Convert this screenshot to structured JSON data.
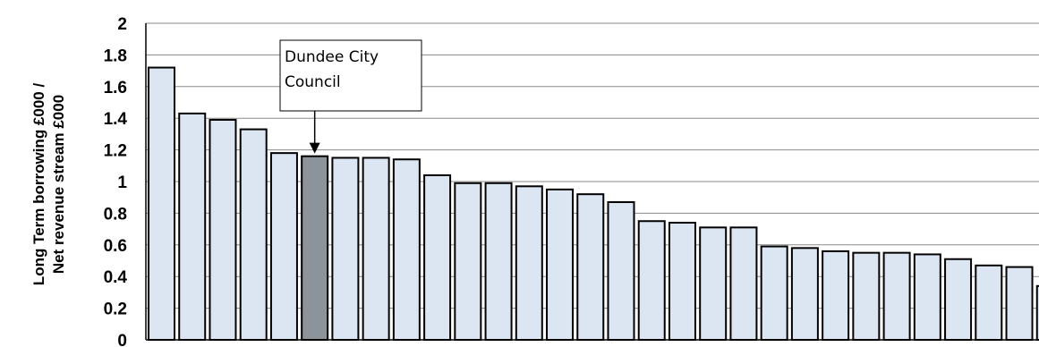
{
  "chart_data": {
    "type": "bar",
    "title": "",
    "xlabel": "",
    "ylabel_lines": [
      "Long Term borrowing £000 /",
      "Net revenue stream £000"
    ],
    "ylim": [
      0,
      2
    ],
    "yticks": [
      "0",
      "0.2",
      "0.4",
      "0.6",
      "0.8",
      "1",
      "1.2",
      "1.4",
      "1.6",
      "1.8",
      "2"
    ],
    "grid": true,
    "values": [
      1.72,
      1.43,
      1.39,
      1.33,
      1.18,
      1.16,
      1.15,
      1.15,
      1.14,
      1.04,
      0.99,
      0.99,
      0.97,
      0.95,
      0.92,
      0.87,
      0.75,
      0.74,
      0.71,
      0.71,
      0.59,
      0.58,
      0.56,
      0.55,
      0.55,
      0.54,
      0.51,
      0.47,
      0.46,
      0.34
    ],
    "highlight_index": 5,
    "bar_color": "#dce6f2",
    "highlight_color": "#8c9399",
    "annotation": {
      "lines": [
        "Dundee City",
        "Council"
      ],
      "target_index": 5
    }
  }
}
